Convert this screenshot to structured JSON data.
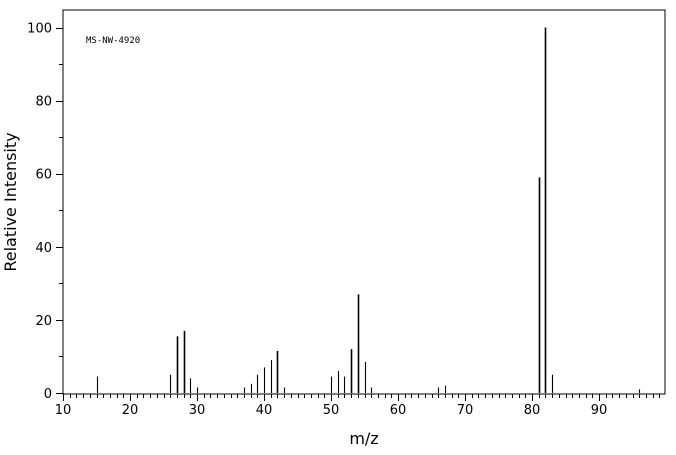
{
  "chart_data": {
    "type": "bar",
    "id_label": "MS-NW-4920",
    "xlabel": "m/z",
    "ylabel": "Relative Intensity",
    "xlim": [
      10,
      99
    ],
    "ylim": [
      0,
      104
    ],
    "x_ticks": [
      10,
      20,
      30,
      40,
      50,
      60,
      70,
      80,
      90
    ],
    "y_ticks": [
      0,
      20,
      40,
      60,
      80,
      100
    ],
    "x_ticklabels": [
      "10",
      "20",
      "30",
      "40",
      "50",
      "60",
      "70",
      "80",
      "90"
    ],
    "y_ticklabels": [
      "0",
      "20",
      "40",
      "60",
      "80",
      "100"
    ],
    "grid": false,
    "peaks": [
      {
        "x": 15,
        "y": 4.5
      },
      {
        "x": 26,
        "y": 5
      },
      {
        "x": 27,
        "y": 15.5
      },
      {
        "x": 28,
        "y": 17
      },
      {
        "x": 29,
        "y": 4
      },
      {
        "x": 30,
        "y": 1.5
      },
      {
        "x": 37,
        "y": 1.5
      },
      {
        "x": 38,
        "y": 2.5
      },
      {
        "x": 39,
        "y": 5
      },
      {
        "x": 40,
        "y": 7
      },
      {
        "x": 41,
        "y": 9
      },
      {
        "x": 42,
        "y": 11.5
      },
      {
        "x": 43,
        "y": 1.5
      },
      {
        "x": 50,
        "y": 4.5
      },
      {
        "x": 51,
        "y": 6
      },
      {
        "x": 52,
        "y": 4.5
      },
      {
        "x": 53,
        "y": 12
      },
      {
        "x": 54,
        "y": 27
      },
      {
        "x": 55,
        "y": 8.5
      },
      {
        "x": 56,
        "y": 1.5
      },
      {
        "x": 66,
        "y": 1.5
      },
      {
        "x": 67,
        "y": 2
      },
      {
        "x": 81,
        "y": 59
      },
      {
        "x": 82,
        "y": 100
      },
      {
        "x": 83,
        "y": 5
      },
      {
        "x": 96,
        "y": 1
      }
    ]
  }
}
